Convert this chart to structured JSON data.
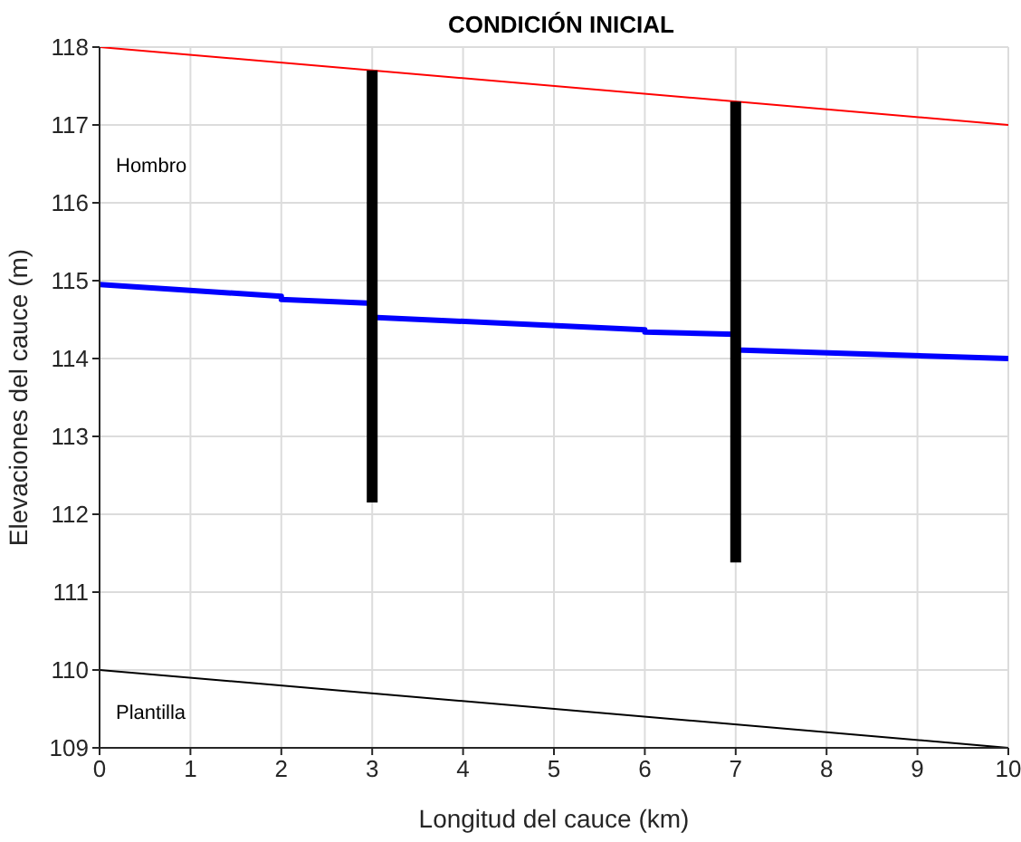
{
  "chart_data": {
    "type": "line",
    "title": "CONDICIÓN INICIAL",
    "xlabel": "Longitud del cauce (km)",
    "ylabel": "Elevaciones del cauce (m)",
    "xlim": [
      0,
      10
    ],
    "xticks": [
      0,
      1,
      2,
      3,
      4,
      5,
      6,
      7,
      8,
      9,
      10
    ],
    "ylim": [
      109,
      118
    ],
    "yticks": [
      109,
      110,
      111,
      112,
      113,
      114,
      115,
      116,
      117,
      118
    ],
    "grid": true,
    "marker": "none",
    "line_style": "solid",
    "series": [
      {
        "color": "#ff0000",
        "x": [
          0,
          10
        ],
        "values": [
          118,
          117
        ]
      },
      {
        "color": "#000000",
        "x": [
          0,
          10
        ],
        "values": [
          110,
          109
        ]
      },
      {
        "color": "#0000ff",
        "x": [
          0,
          2,
          2,
          3,
          3,
          6,
          6,
          7,
          7,
          10
        ],
        "values": [
          114.95,
          114.8,
          114.76,
          114.71,
          114.53,
          114.37,
          114.34,
          114.31,
          114.11,
          114.0
        ]
      },
      {
        "color": "#000000",
        "x": [
          3,
          3
        ],
        "values": [
          112.15,
          117.7
        ]
      },
      {
        "color": "#000000",
        "x": [
          7,
          7
        ],
        "values": [
          111.38,
          117.3
        ]
      }
    ],
    "annotations": [
      "Hombro",
      "Plantilla"
    ]
  }
}
